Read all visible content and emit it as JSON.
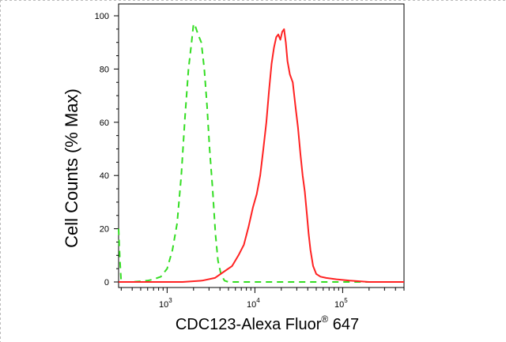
{
  "chart_data": {
    "type": "line",
    "title": "",
    "xlabel": {
      "prefix": "CDC123-Alexa Fluor",
      "superscript": "®",
      "suffix": " 647"
    },
    "ylabel": "Cell Counts (% Max)",
    "xscale": "log",
    "xlim": [
      280,
      500000
    ],
    "ylim": [
      0,
      100
    ],
    "yticks": [
      {
        "value": 0,
        "label": "0"
      },
      {
        "value": 20,
        "label": "20"
      },
      {
        "value": 40,
        "label": "40"
      },
      {
        "value": 60,
        "label": "60"
      },
      {
        "value": 80,
        "label": "80"
      },
      {
        "value": 100,
        "label": "100"
      }
    ],
    "xticks": [
      {
        "value": 1000,
        "base": "10",
        "exp": "3"
      },
      {
        "value": 10000,
        "base": "10",
        "exp": "4"
      },
      {
        "value": 100000,
        "base": "10",
        "exp": "5"
      }
    ],
    "grid": false,
    "legend": "none",
    "series": [
      {
        "color": "#33dd22",
        "dash": "dashed",
        "points": [
          [
            280,
            20
          ],
          [
            290,
            8
          ],
          [
            300,
            0
          ],
          [
            400,
            0
          ],
          [
            600,
            0.5
          ],
          [
            700,
            1
          ],
          [
            850,
            2
          ],
          [
            1000,
            5
          ],
          [
            1150,
            12
          ],
          [
            1300,
            22
          ],
          [
            1450,
            40
          ],
          [
            1600,
            62
          ],
          [
            1750,
            80
          ],
          [
            1900,
            90
          ],
          [
            2000,
            97
          ],
          [
            2100,
            96
          ],
          [
            2250,
            93
          ],
          [
            2450,
            90
          ],
          [
            2650,
            80
          ],
          [
            2850,
            66
          ],
          [
            3050,
            50
          ],
          [
            3300,
            35
          ],
          [
            3550,
            18
          ],
          [
            3800,
            8
          ],
          [
            4100,
            3
          ],
          [
            4500,
            0.5
          ],
          [
            5000,
            0
          ],
          [
            500000,
            0
          ]
        ]
      },
      {
        "color": "#ff2222",
        "dash": "solid",
        "points": [
          [
            280,
            0
          ],
          [
            1500,
            0
          ],
          [
            2500,
            0.5
          ],
          [
            3500,
            1.5
          ],
          [
            4500,
            4
          ],
          [
            5500,
            6
          ],
          [
            6500,
            10
          ],
          [
            7500,
            14
          ],
          [
            8500,
            21
          ],
          [
            9500,
            28
          ],
          [
            10500,
            33
          ],
          [
            11500,
            40
          ],
          [
            12500,
            50
          ],
          [
            13500,
            60
          ],
          [
            14500,
            72
          ],
          [
            15500,
            82
          ],
          [
            16500,
            88
          ],
          [
            17500,
            92
          ],
          [
            18500,
            93
          ],
          [
            19500,
            91
          ],
          [
            20500,
            94
          ],
          [
            21500,
            95
          ],
          [
            22500,
            90
          ],
          [
            23500,
            83
          ],
          [
            25000,
            78
          ],
          [
            27000,
            75
          ],
          [
            29000,
            66
          ],
          [
            31000,
            58
          ],
          [
            33000,
            48
          ],
          [
            35000,
            40
          ],
          [
            37000,
            34
          ],
          [
            39000,
            26
          ],
          [
            41000,
            18
          ],
          [
            43000,
            12
          ],
          [
            46000,
            6
          ],
          [
            50000,
            3
          ],
          [
            56000,
            2
          ],
          [
            65000,
            1.5
          ],
          [
            85000,
            1
          ],
          [
            120000,
            0.5
          ],
          [
            200000,
            0
          ],
          [
            500000,
            0
          ]
        ]
      }
    ]
  }
}
